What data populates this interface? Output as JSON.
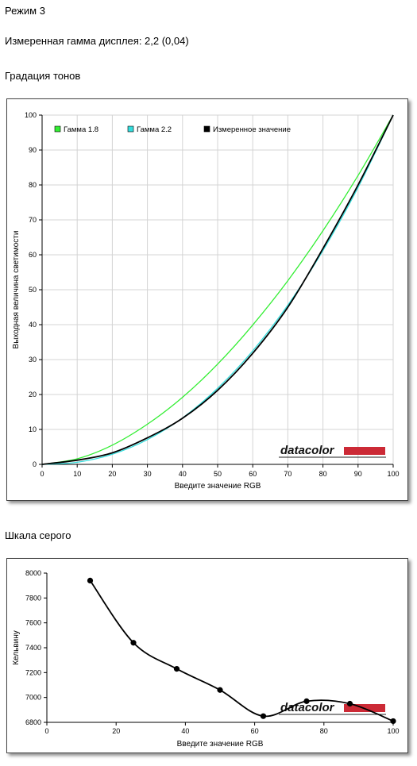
{
  "page": {
    "mode_label": "Режим 3",
    "measured_gamma": "Измеренная гамма дисплея: 2,2 (0,04)",
    "tone_section": "Градация тонов",
    "gray_section": "Шкала серого"
  },
  "logo": {
    "text": "datacolor",
    "color": "#cc2a36"
  },
  "chart_data": [
    {
      "type": "line",
      "title": "Градация тонов",
      "xlabel": "Введите значение RGB",
      "ylabel": "Выходная величина светимости",
      "xlim": [
        0,
        100
      ],
      "ylim": [
        0,
        100
      ],
      "xticks": [
        "0",
        "10",
        "20",
        "30",
        "40",
        "50",
        "60",
        "70",
        "80",
        "90",
        "100"
      ],
      "yticks": [
        "0",
        "10",
        "20",
        "30",
        "40",
        "50",
        "60",
        "70",
        "80",
        "90",
        "100"
      ],
      "grid": true,
      "legend_position": "top-left",
      "x": [
        0,
        10,
        20,
        30,
        40,
        50,
        60,
        70,
        80,
        90,
        100
      ],
      "series": [
        {
          "name": "Гамма 1.8",
          "color": "#33ee33",
          "values": [
            0,
            1.6,
            5.5,
            11.5,
            19.2,
            28.7,
            39.9,
            52.6,
            66.9,
            82.7,
            100
          ]
        },
        {
          "name": "Гамма 2.2",
          "color": "#33dddd",
          "values": [
            0,
            0.6,
            2.9,
            7.1,
            13.3,
            21.8,
            32.5,
            45.6,
            61.2,
            79.3,
            100
          ]
        },
        {
          "name": "Измеренное значение",
          "color": "#000000",
          "values": [
            0,
            1.2,
            3.3,
            7.6,
            13.2,
            21.2,
            31.8,
            45.0,
            61.8,
            80.0,
            100
          ]
        }
      ]
    },
    {
      "type": "line",
      "title": "Шкала серого",
      "xlabel": "Введите значение RGB",
      "ylabel": "Кельвину",
      "xlim": [
        0,
        100
      ],
      "ylim": [
        6800,
        8000
      ],
      "xticks": [
        "0",
        "20",
        "40",
        "60",
        "80",
        "100"
      ],
      "yticks": [
        "6800",
        "7000",
        "7200",
        "7400",
        "7600",
        "7800",
        "8000"
      ],
      "grid": false,
      "series": [
        {
          "name": "",
          "color": "#000000",
          "x": [
            12.5,
            25,
            37.5,
            50,
            62.5,
            75,
            87.5,
            100
          ],
          "values": [
            7940,
            7440,
            7230,
            7060,
            6850,
            6970,
            6950,
            6810
          ]
        }
      ]
    }
  ]
}
